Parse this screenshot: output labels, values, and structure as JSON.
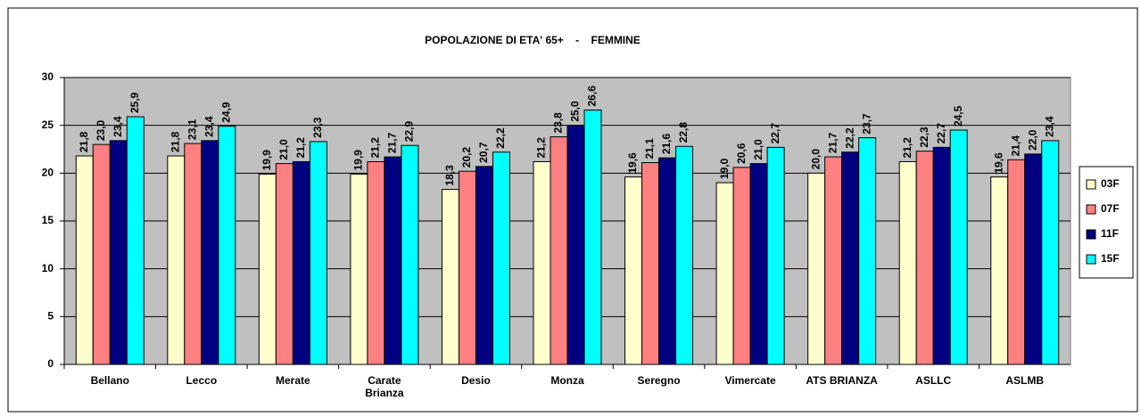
{
  "chart_data": {
    "type": "bar",
    "title": "POPOLAZIONE DI ETA' 65+    -    FEMMINE",
    "categories": [
      "Bellano",
      "Lecco",
      "Merate",
      "Carate\nBrianza",
      "Desio",
      "Monza",
      "Seregno",
      "Vimercate",
      "ATS BRIANZA",
      "ASLLC",
      "ASLMB"
    ],
    "series": [
      {
        "name": "03F",
        "color": "#ffffcc",
        "values": [
          21.8,
          21.8,
          19.9,
          19.9,
          18.3,
          21.2,
          19.6,
          19.0,
          20.0,
          21.2,
          19.6
        ],
        "value_labels": [
          "21,8",
          "21,8",
          "19,9",
          "19,9",
          "18,3",
          "21,2",
          "19,6",
          "19,0",
          "20,0",
          "21,2",
          "19,6"
        ]
      },
      {
        "name": "07F",
        "color": "#ff8080",
        "values": [
          23.0,
          23.1,
          21.0,
          21.2,
          20.2,
          23.8,
          21.1,
          20.6,
          21.7,
          22.3,
          21.4
        ],
        "value_labels": [
          "23,0",
          "23,1",
          "21,0",
          "21,2",
          "20,2",
          "23,8",
          "21,1",
          "20,6",
          "21,7",
          "22,3",
          "21,4"
        ]
      },
      {
        "name": "11F",
        "color": "#000080",
        "values": [
          23.4,
          23.4,
          21.2,
          21.7,
          20.7,
          25.0,
          21.6,
          21.0,
          22.2,
          22.7,
          22.0
        ],
        "value_labels": [
          "23,4",
          "23,4",
          "21,2",
          "21,7",
          "20,7",
          "25,0",
          "21,6",
          "21,0",
          "22,2",
          "22,7",
          "22,0"
        ]
      },
      {
        "name": "15F",
        "color": "#00ffff",
        "values": [
          25.9,
          24.9,
          23.3,
          22.9,
          22.2,
          26.6,
          22.8,
          22.7,
          23.7,
          24.5,
          23.4
        ],
        "value_labels": [
          "25,9",
          "24,9",
          "23,3",
          "22,9",
          "22,2",
          "26,6",
          "22,8",
          "22,7",
          "23,7",
          "24,5",
          "23,4"
        ]
      }
    ],
    "ylim": [
      0,
      30
    ],
    "yticks": [
      0,
      5,
      10,
      15,
      20,
      25,
      30
    ],
    "grid": true,
    "legend": "right",
    "plot_background": "#c0c0c0"
  }
}
